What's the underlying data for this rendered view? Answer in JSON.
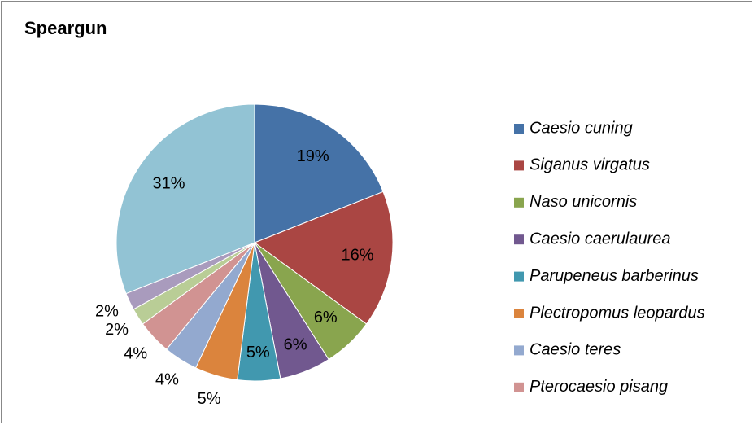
{
  "chart_data": {
    "type": "pie",
    "title": "Speargun",
    "categories": [
      "Caesio cuning",
      "Siganus virgatus",
      "Naso unicornis",
      "Caesio caerulaurea",
      "Parupeneus barberinus",
      "Plectropomus leopardus",
      "Caesio teres",
      "Pterocaesio pisang",
      null,
      null,
      null
    ],
    "values": [
      19,
      16,
      6,
      6,
      5,
      5,
      4,
      4,
      2,
      2,
      31
    ],
    "value_labels": [
      "19%",
      "16%",
      "6%",
      "6%",
      "5%",
      "5%",
      "4%",
      "4%",
      "2%",
      "2%",
      "31%"
    ],
    "colors": [
      "#4572a7",
      "#aa4643",
      "#89a54e",
      "#71588f",
      "#4198af",
      "#db843d",
      "#93a9cf",
      "#d19392",
      "#b9cd96",
      "#a99bbd",
      "#92c3d4"
    ],
    "legend": "right"
  }
}
